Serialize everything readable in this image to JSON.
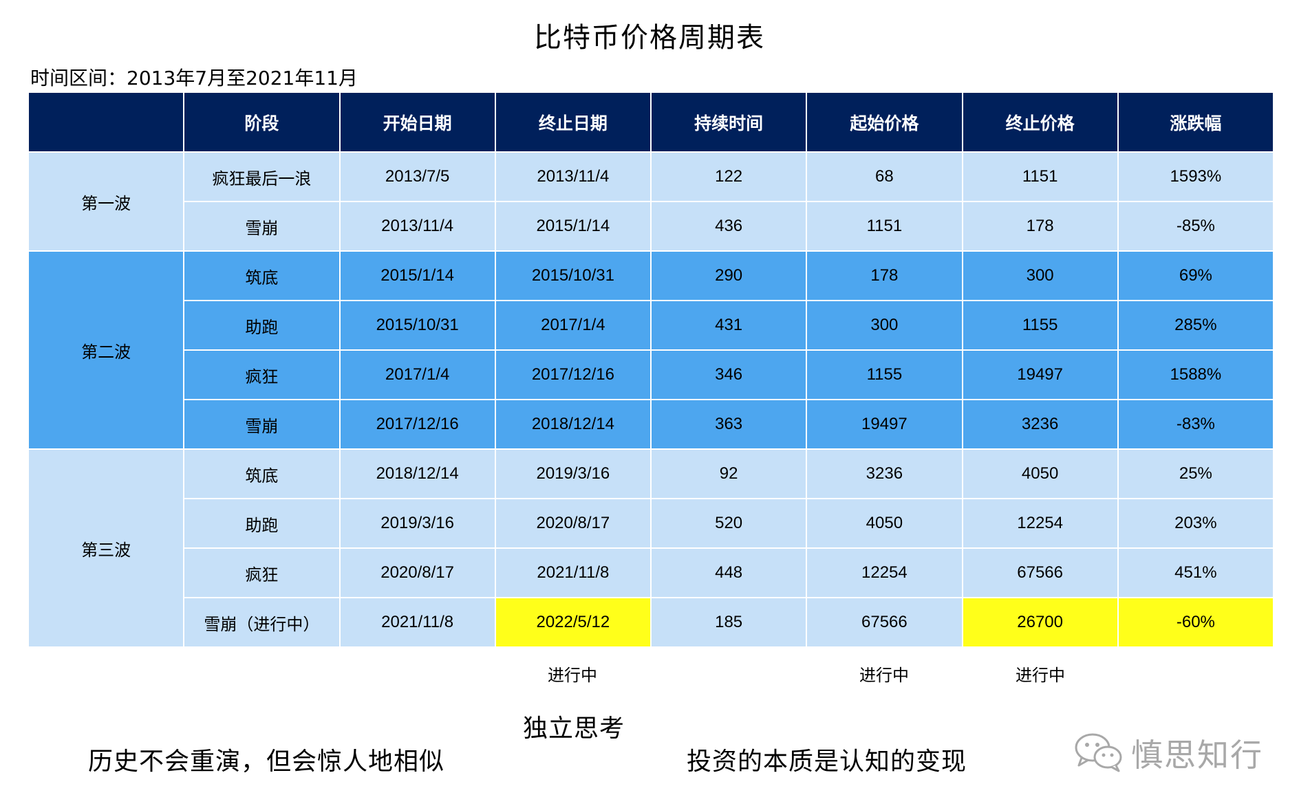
{
  "title": "比特币价格周期表",
  "period": "时间区间：2013年7月至2021年11月",
  "columns": [
    "",
    "阶段",
    "开始日期",
    "终止日期",
    "持续时间",
    "起始价格",
    "终止价格",
    "涨跌幅"
  ],
  "waves": [
    {
      "name": "第一波",
      "rows": [
        {
          "stage": "疯狂最后一浪",
          "start": "2013/7/5",
          "end": "2013/11/4",
          "duration": "122",
          "start_price": "68",
          "end_price": "1151",
          "change": "1593%"
        },
        {
          "stage": "雪崩",
          "start": "2013/11/4",
          "end": "2015/1/14",
          "duration": "436",
          "start_price": "1151",
          "end_price": "178",
          "change": "-85%"
        }
      ]
    },
    {
      "name": "第二波",
      "rows": [
        {
          "stage": "筑底",
          "start": "2015/1/14",
          "end": "2015/10/31",
          "duration": "290",
          "start_price": "178",
          "end_price": "300",
          "change": "69%"
        },
        {
          "stage": "助跑",
          "start": "2015/10/31",
          "end": "2017/1/4",
          "duration": "431",
          "start_price": "300",
          "end_price": "1155",
          "change": "285%"
        },
        {
          "stage": "疯狂",
          "start": "2017/1/4",
          "end": "2017/12/16",
          "duration": "346",
          "start_price": "1155",
          "end_price": "19497",
          "change": "1588%"
        },
        {
          "stage": "雪崩",
          "start": "2017/12/16",
          "end": "2018/12/14",
          "duration": "363",
          "start_price": "19497",
          "end_price": "3236",
          "change": "-83%"
        }
      ]
    },
    {
      "name": "第三波",
      "rows": [
        {
          "stage": "筑底",
          "start": "2018/12/14",
          "end": "2019/3/16",
          "duration": "92",
          "start_price": "3236",
          "end_price": "4050",
          "change": "25%"
        },
        {
          "stage": "助跑",
          "start": "2019/3/16",
          "end": "2020/8/17",
          "duration": "520",
          "start_price": "4050",
          "end_price": "12254",
          "change": "203%"
        },
        {
          "stage": "疯狂",
          "start": "2020/8/17",
          "end": "2021/11/8",
          "duration": "448",
          "start_price": "12254",
          "end_price": "67566",
          "change": "451%"
        },
        {
          "stage": "雪崩（进行中）",
          "start": "2021/11/8",
          "end": "2022/5/12",
          "duration": "185",
          "start_price": "67566",
          "end_price": "26700",
          "change": "-60%"
        }
      ]
    }
  ],
  "notes": {
    "end_date": "进行中",
    "end_price": "进行中",
    "change": "进行中"
  },
  "slogans": {
    "center": "独立思考",
    "left": "历史不会重演，但会惊人地相似",
    "right": "投资的本质是认知的变现"
  },
  "brand": {
    "name": "慎思知行",
    "icon": "wechat-icon"
  },
  "colors": {
    "header_bg": "#00205b",
    "light_row": "#c6e0f8",
    "mid_row": "#4da6ef",
    "highlight": "#ffff1a"
  }
}
